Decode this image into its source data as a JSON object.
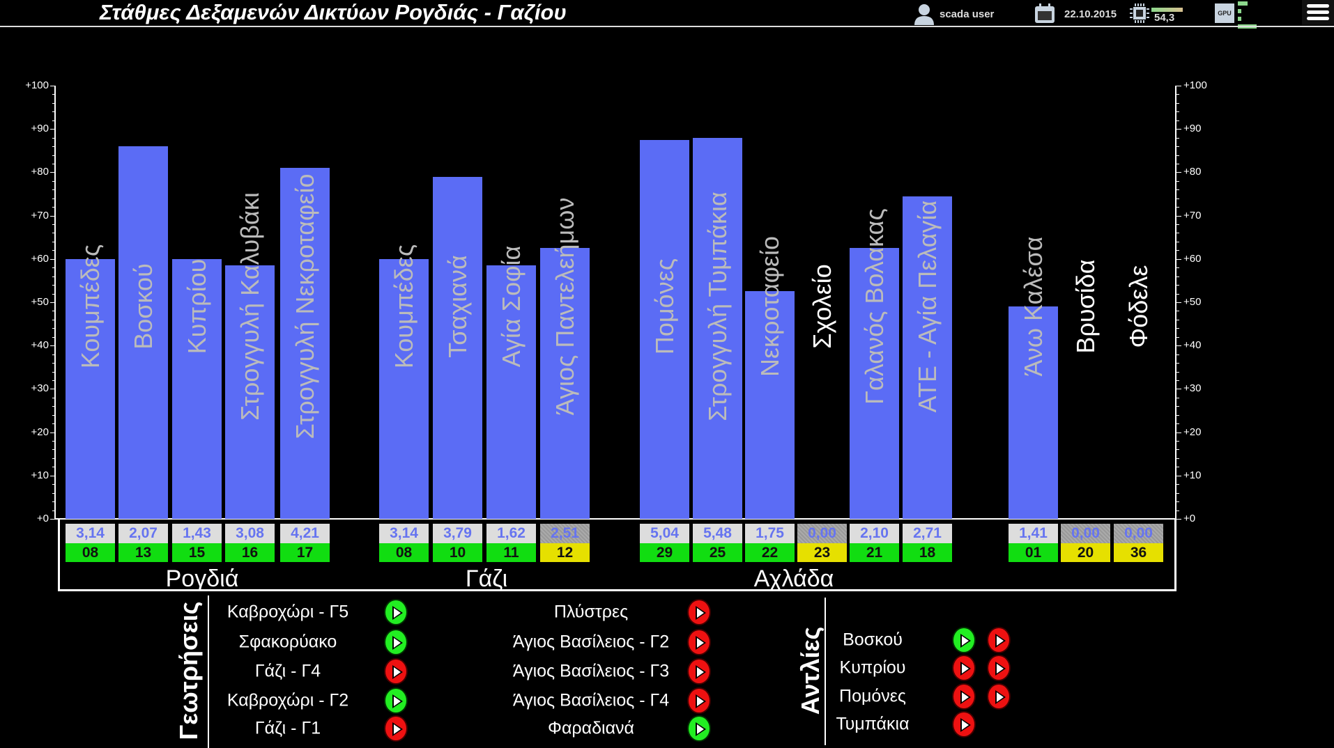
{
  "header": {
    "title": "Στάθμες Δεξαμενών Δικτύων Ρογδιάς - Γαζίου",
    "user": "scada user",
    "date": "22.10.2015",
    "cpu_value": "54,3",
    "cpu_icon": "cpu-icon",
    "gpu_label": "GPU",
    "menu_icon": "hamburger-menu-icon"
  },
  "chart_data": {
    "type": "bar",
    "ylim": [
      0,
      100
    ],
    "y_ticks": [
      "+0",
      "+10",
      "+20",
      "+30",
      "+40",
      "+50",
      "+60",
      "+70",
      "+80",
      "+90",
      "+100"
    ],
    "bar_color": "#5b6cf5",
    "categories": [
      "Κουμπέδες",
      "Βοσκού",
      "Κυπρίου",
      "Στρογγυλή Καλυβάκι",
      "Στρογγυλή Νεκροταφείο",
      "Κουμπέδες",
      "Τσαχιανά",
      "Αγία Σοφία",
      "Άγιος Παντελεήμων",
      "Πομόνες",
      "Στρογγυλή Τυμπάκια",
      "Νεκροταφείο",
      "Σχολείο",
      "Γαλανός Βολακας",
      "ΑΤΕ - Αγία Πελαγία",
      "Άνω Καλέσα",
      "Βρυσίδα",
      "Φόδελε"
    ],
    "values": [
      60,
      86,
      60,
      58.5,
      81,
      60,
      79,
      58.5,
      62.5,
      87.5,
      88,
      52.5,
      0,
      62.5,
      74.5,
      49,
      0,
      0
    ]
  },
  "readings": [
    {
      "value": "3,14",
      "id": "08",
      "status": "ok"
    },
    {
      "value": "2,07",
      "id": "13",
      "status": "ok"
    },
    {
      "value": "1,43",
      "id": "15",
      "status": "ok"
    },
    {
      "value": "3,08",
      "id": "16",
      "status": "ok"
    },
    {
      "value": "4,21",
      "id": "17",
      "status": "ok"
    },
    {
      "value": "3,14",
      "id": "08",
      "status": "ok"
    },
    {
      "value": "3,79",
      "id": "10",
      "status": "ok"
    },
    {
      "value": "1,62",
      "id": "11",
      "status": "ok"
    },
    {
      "value": "2,51",
      "id": "12",
      "status": "warn"
    },
    {
      "value": "5,04",
      "id": "29",
      "status": "ok"
    },
    {
      "value": "5,48",
      "id": "25",
      "status": "ok"
    },
    {
      "value": "1,75",
      "id": "22",
      "status": "ok"
    },
    {
      "value": "0,00",
      "id": "23",
      "status": "warn"
    },
    {
      "value": "2,10",
      "id": "21",
      "status": "ok"
    },
    {
      "value": "2,71",
      "id": "18",
      "status": "ok"
    },
    {
      "value": "1,41",
      "id": "01",
      "status": "ok"
    },
    {
      "value": "0,00",
      "id": "20",
      "status": "warn"
    },
    {
      "value": "0,00",
      "id": "36",
      "status": "warn"
    }
  ],
  "groups": [
    "Ρογδιά",
    "Γάζι",
    "Αχλάδα"
  ],
  "boreholes": {
    "title": "Γεωτρήσεις",
    "col1": [
      {
        "name": "Καβροχώρι - Γ5",
        "on": true
      },
      {
        "name": "Σφακορύακο",
        "on": true
      },
      {
        "name": "Γάζι - Γ4",
        "on": false
      },
      {
        "name": "Καβροχώρι - Γ2",
        "on": true
      },
      {
        "name": "Γάζι - Γ1",
        "on": false
      }
    ],
    "col2": [
      {
        "name": "Πλύστρες",
        "on": false
      },
      {
        "name": "Άγιος Βασίλειος - Γ2",
        "on": false
      },
      {
        "name": "Άγιος Βασίλειος - Γ3",
        "on": false
      },
      {
        "name": "Άγιος Βασίλειος - Γ4",
        "on": false
      },
      {
        "name": "Φαραδιανά",
        "on": true
      }
    ]
  },
  "pumps": {
    "title": "Αντλίες",
    "items": [
      {
        "name": "Βοσκού",
        "states": [
          true,
          false
        ]
      },
      {
        "name": "Κυπρίου",
        "states": [
          false,
          false
        ]
      },
      {
        "name": "Πομόνες",
        "states": [
          false,
          false
        ]
      },
      {
        "name": "Τυμπάκια",
        "states": [
          false
        ]
      }
    ]
  }
}
